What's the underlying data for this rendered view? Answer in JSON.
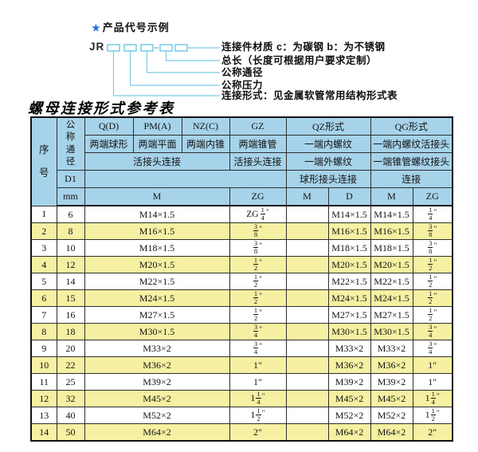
{
  "colors": {
    "header_blue": "#a6d3ea",
    "row_yellow": "#f5f0a2",
    "line_cyan": "#6cc6e6",
    "star_blue": "#2b6fd0"
  },
  "diagram": {
    "star": "★",
    "title": "产品代号示例",
    "prefix": "JR",
    "labels": [
      "连接件材质  c：为碳钢  b：为不锈钢",
      "总长（长度可根据用户要求定制）",
      "公称通径",
      "公称压力",
      "连接形式：见金属软管常用结构形式表"
    ]
  },
  "table": {
    "title": "螺母连接形式参考表",
    "header": {
      "seq": "序号",
      "dn": "公称通径",
      "d1": "D1",
      "mm": "mm",
      "col_q": "Q(D)",
      "col_pm": "PM(A)",
      "col_nz": "NZ(C)",
      "col_gz": "GZ",
      "col_qz": "QZ形式",
      "col_qg": "QG形式",
      "q_desc": "两端球形",
      "pm_desc": "两端平面",
      "nz_desc": "两端内锥",
      "gz_desc": "两端锥管",
      "qz_desc1": "一端内螺纹",
      "qg_desc1": "一端内螺纹活接头",
      "joint_conn": "活接头连接",
      "gz_conn": "活接头连接",
      "qz_desc2": "一端外螺纹",
      "qg_desc2": "一端锥管螺纹接头",
      "qz_conn": "球形接头连接",
      "qg_conn": "连接",
      "m_label": "M",
      "zg_label": "ZG",
      "qz_m": "M",
      "qz_d": "D",
      "qg_m": "M",
      "qg_zg": "ZG"
    },
    "rows": [
      {
        "no": "1",
        "mm": "6",
        "m": "M14×1.5",
        "gz": "ZG 1/4\"",
        "qz_m": "",
        "qz_d": "M14×1.5",
        "qg_m": "M14×1.5",
        "qg_zg": "1/4\""
      },
      {
        "no": "2",
        "mm": "8",
        "m": "M16×1.5",
        "gz": "3/8\"",
        "qz_m": "",
        "qz_d": "M16×1.5",
        "qg_m": "M16×1.5",
        "qg_zg": "3/8\""
      },
      {
        "no": "3",
        "mm": "10",
        "m": "M18×1.5",
        "gz": "3/8\"",
        "qz_m": "",
        "qz_d": "M18×1.5",
        "qg_m": "M18×1.5",
        "qg_zg": "3/8\""
      },
      {
        "no": "4",
        "mm": "12",
        "m": "M20×1.5",
        "gz": "1/2\"",
        "qz_m": "",
        "qz_d": "M20×1.5",
        "qg_m": "M20×1.5",
        "qg_zg": "1/2\""
      },
      {
        "no": "5",
        "mm": "14",
        "m": "M22×1.5",
        "gz": "1/2\"",
        "qz_m": "",
        "qz_d": "M22×1.5",
        "qg_m": "M22×1.5",
        "qg_zg": "1/2\""
      },
      {
        "no": "6",
        "mm": "15",
        "m": "M24×1.5",
        "gz": "1/2\"",
        "qz_m": "",
        "qz_d": "M24×1.5",
        "qg_m": "M24×1.5",
        "qg_zg": "1/2\""
      },
      {
        "no": "7",
        "mm": "16",
        "m": "M27×1.5",
        "gz": "1/2\"",
        "qz_m": "",
        "qz_d": "M27×1.5",
        "qg_m": "M27×1.5",
        "qg_zg": "1/2\""
      },
      {
        "no": "8",
        "mm": "18",
        "m": "M30×1.5",
        "gz": "3/4\"",
        "qz_m": "",
        "qz_d": "M30×1.5",
        "qg_m": "M30×1.5",
        "qg_zg": "3/4\""
      },
      {
        "no": "9",
        "mm": "20",
        "m": "M33×2",
        "gz": "3/4\"",
        "qz_m": "",
        "qz_d": "M33×2",
        "qg_m": "M33×2",
        "qg_zg": "3/4\""
      },
      {
        "no": "10",
        "mm": "22",
        "m": "M36×2",
        "gz": "1\"",
        "qz_m": "",
        "qz_d": "M36×2",
        "qg_m": "M36×2",
        "qg_zg": "1\""
      },
      {
        "no": "11",
        "mm": "25",
        "m": "M39×2",
        "gz": "1\"",
        "qz_m": "",
        "qz_d": "M39×2",
        "qg_m": "M39×2",
        "qg_zg": "1\""
      },
      {
        "no": "12",
        "mm": "32",
        "m": "M45×2",
        "gz": "1 1/4\"",
        "qz_m": "",
        "qz_d": "M45×2",
        "qg_m": "M45×2",
        "qg_zg": "1 1/4\""
      },
      {
        "no": "13",
        "mm": "40",
        "m": "M52×2",
        "gz": "1 1/2\"",
        "qz_m": "",
        "qz_d": "M52×2",
        "qg_m": "M52×2",
        "qg_zg": "1 1/2\""
      },
      {
        "no": "14",
        "mm": "50",
        "m": "M64×2",
        "gz": "2\"",
        "qz_m": "",
        "qz_d": "M64×2",
        "qg_m": "M64×2",
        "qg_zg": "2\""
      }
    ]
  }
}
